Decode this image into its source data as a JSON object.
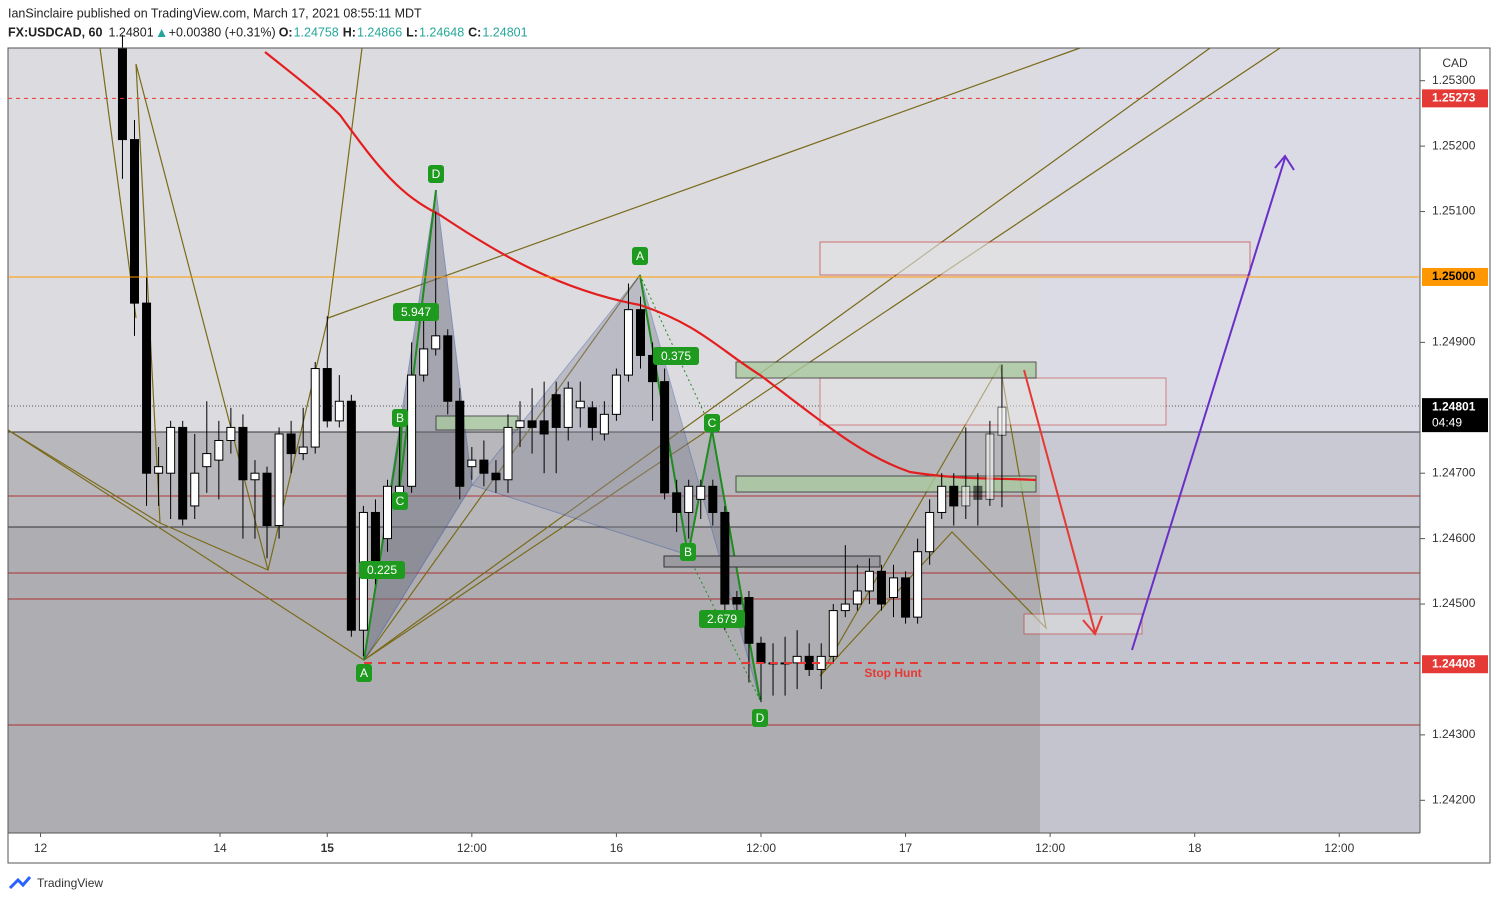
{
  "header": {
    "publisher": "IanSinclaire published on TradingView.com, March 17, 2021 08:55:11 MDT",
    "symbol": "FX:USDCAD, 60",
    "change": "+0.00380 (+0.31%)",
    "ohlc_labels": [
      "O:",
      "H:",
      "L:",
      "C:"
    ],
    "currency": "CAD",
    "countdown": "04:49"
  },
  "footer": {
    "brand": "TradingView"
  },
  "chart_data": {
    "type": "candlestick",
    "up_color": "#ffffff",
    "down_color": "#000000",
    "x": [
      -17,
      -16,
      -15,
      -14,
      -13,
      -12,
      -11,
      -10,
      -9,
      -8,
      -7,
      -6,
      -5,
      -4,
      -3,
      -2,
      -1,
      0,
      1,
      2,
      3,
      4,
      5,
      6,
      7,
      8,
      9,
      10,
      11,
      12,
      13,
      14,
      15,
      16,
      17,
      18,
      19,
      20,
      21,
      22,
      23,
      24,
      25,
      26,
      27,
      28,
      29,
      30,
      31,
      32,
      33,
      34,
      35,
      36,
      37,
      38,
      39,
      40,
      41,
      42,
      43,
      44,
      45,
      46,
      47,
      48,
      49,
      50,
      51,
      52,
      53,
      54,
      55,
      56
    ],
    "open": [
      1.2535,
      1.2521,
      1.2496,
      1.247,
      1.247,
      1.2477,
      1.2465,
      1.2471,
      1.2472,
      1.2475,
      1.2477,
      1.2469,
      1.247,
      1.2462,
      1.2476,
      1.2473,
      1.2474,
      1.2486,
      1.2478,
      1.2481,
      1.2446,
      1.2464,
      1.246,
      1.2467,
      1.2468,
      1.2485,
      1.2489,
      1.2491,
      1.2481,
      1.2471,
      1.2472,
      1.247,
      1.2469,
      1.2477,
      1.2478,
      1.2478,
      1.2482,
      1.2477,
      1.248,
      1.248,
      1.2476,
      1.2479,
      1.2485,
      1.2495,
      1.2488,
      1.2484,
      1.2467,
      1.2464,
      1.2466,
      1.2468,
      1.2464,
      1.2451,
      1.2451,
      1.2444,
      1.2441,
      1.2441,
      1.2441,
      1.2442,
      1.244,
      1.2442,
      1.2449,
      1.245,
      1.2452,
      1.2455,
      1.2451,
      1.2454,
      1.2448,
      1.2458,
      1.2464,
      1.2468,
      1.2465,
      1.2468,
      1.2466,
      1.24758
    ],
    "high": [
      1.2537,
      1.2524,
      1.25,
      1.2474,
      1.2478,
      1.2478,
      1.2476,
      1.2481,
      1.2478,
      1.248,
      1.2479,
      1.2472,
      1.2471,
      1.2477,
      1.2478,
      1.248,
      1.2487,
      1.2494,
      1.2485,
      1.2482,
      1.2465,
      1.2466,
      1.2469,
      1.2479,
      1.249,
      1.2496,
      1.251,
      1.2492,
      1.2483,
      1.2474,
      1.2475,
      1.2472,
      1.2479,
      1.2481,
      1.2483,
      1.2484,
      1.2484,
      1.2484,
      1.2484,
      1.2481,
      1.2481,
      1.2486,
      1.2499,
      1.2497,
      1.249,
      1.2486,
      1.2469,
      1.2469,
      1.2469,
      1.2469,
      1.2465,
      1.2452,
      1.2452,
      1.2445,
      1.2444,
      1.2445,
      1.2446,
      1.2444,
      1.2444,
      1.245,
      1.2459,
      1.2456,
      1.2457,
      1.2456,
      1.2456,
      1.2455,
      1.246,
      1.2466,
      1.247,
      1.247,
      1.2477,
      1.247,
      1.2478,
      1.24866
    ],
    "low": [
      1.2515,
      1.2491,
      1.2465,
      1.2465,
      1.2463,
      1.2462,
      1.2463,
      1.2467,
      1.2466,
      1.2473,
      1.246,
      1.246,
      1.2457,
      1.246,
      1.247,
      1.2472,
      1.2473,
      1.2477,
      1.2477,
      1.2445,
      1.2442,
      1.2453,
      1.2458,
      1.2466,
      1.2467,
      1.2484,
      1.2488,
      1.2479,
      1.2466,
      1.2469,
      1.2468,
      1.2467,
      1.2467,
      1.2474,
      1.2473,
      1.247,
      1.247,
      1.2475,
      1.2477,
      1.2475,
      1.2475,
      1.2478,
      1.2484,
      1.2486,
      1.2478,
      1.2466,
      1.2461,
      1.246,
      1.2463,
      1.2462,
      1.2446,
      1.2449,
      1.2438,
      1.2435,
      1.2436,
      1.2436,
      1.2437,
      1.2439,
      1.2437,
      1.2441,
      1.2448,
      1.2449,
      1.245,
      1.2449,
      1.2448,
      1.2447,
      1.2447,
      1.2456,
      1.2463,
      1.2462,
      1.2463,
      1.2462,
      1.2465,
      1.24648
    ],
    "close": [
      1.2521,
      1.2496,
      1.247,
      1.2471,
      1.2477,
      1.2463,
      1.247,
      1.2473,
      1.2475,
      1.2477,
      1.2469,
      1.247,
      1.2462,
      1.2476,
      1.2473,
      1.2474,
      1.2486,
      1.2478,
      1.2481,
      1.2446,
      1.2464,
      1.2455,
      1.2468,
      1.2468,
      1.2485,
      1.2489,
      1.2491,
      1.2481,
      1.2468,
      1.2472,
      1.247,
      1.2469,
      1.2477,
      1.2478,
      1.2477,
      1.2476,
      1.2477,
      1.2483,
      1.2481,
      1.2477,
      1.2479,
      1.2485,
      1.2495,
      1.2488,
      1.2484,
      1.2467,
      1.2464,
      1.2468,
      1.2468,
      1.2464,
      1.245,
      1.245,
      1.2444,
      1.2441,
      1.2441,
      1.2441,
      1.2442,
      1.244,
      1.2442,
      1.2449,
      1.245,
      1.2452,
      1.2455,
      1.245,
      1.2454,
      1.2448,
      1.2458,
      1.2464,
      1.2468,
      1.2465,
      1.2468,
      1.2466,
      1.2476,
      1.24801
    ],
    "xlim": [
      -26.5,
      90.7
    ],
    "xticks": [
      {
        "value": -23.8,
        "label": "12"
      },
      {
        "value": -8.9,
        "label": "14"
      },
      {
        "value": 0,
        "label": "15"
      },
      {
        "value": 12,
        "label": "12:00"
      },
      {
        "value": 24,
        "label": "16"
      },
      {
        "value": 36,
        "label": "12:00"
      },
      {
        "value": 48,
        "label": "17"
      },
      {
        "value": 60,
        "label": "12:00"
      },
      {
        "value": 72,
        "label": "18"
      },
      {
        "value": 84,
        "label": "12:00"
      }
    ],
    "ylim": [
      1.2415,
      1.2535
    ],
    "yticks": [
      {
        "value": 1.242,
        "label": "1.24200"
      },
      {
        "value": 1.243,
        "label": "1.24300"
      },
      {
        "value": 1.245,
        "label": "1.24500"
      },
      {
        "value": 1.246,
        "label": "1.24600"
      },
      {
        "value": 1.247,
        "label": "1.24700"
      },
      {
        "value": 1.249,
        "label": "1.24900"
      },
      {
        "value": 1.251,
        "label": "1.25100"
      },
      {
        "value": 1.252,
        "label": "1.25200"
      },
      {
        "value": 1.253,
        "label": "1.25300"
      }
    ],
    "price_lines": [
      {
        "value": 1.25273,
        "label": "1.25273",
        "color": "#e53935"
      },
      {
        "value": 1.25,
        "label": "1.25000",
        "color": "#ff9800"
      },
      {
        "value": 1.24408,
        "label": "1.24408",
        "color": "#e53935"
      }
    ],
    "annotations": [
      "D",
      "5.947",
      "B",
      "C",
      "0.225",
      "A",
      "A",
      "0.375",
      "C",
      "B",
      "2.679",
      "D",
      "Stop Hunt"
    ]
  }
}
